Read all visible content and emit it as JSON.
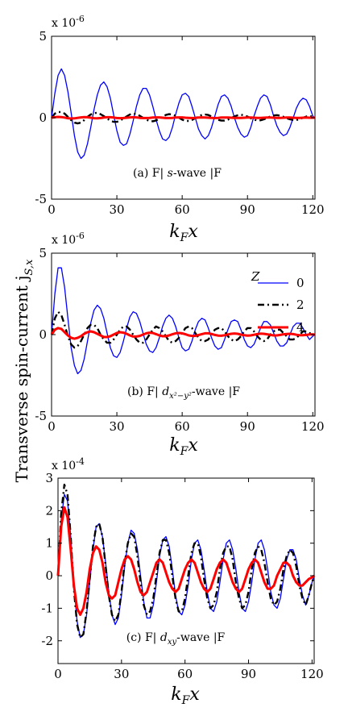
{
  "ylabel": "Transverse spin-current j",
  "ylabel_sub": "S,x",
  "legend_title": "Z",
  "chart_data": [
    {
      "type": "line",
      "caption": "(a) F| s-wave |F",
      "xlabel": "k_F x",
      "exponent_label": "x 10",
      "exponent": "-6",
      "xlim": [
        0,
        121
      ],
      "ylim": [
        -5,
        5
      ],
      "xticks": [
        0,
        30,
        60,
        90,
        120
      ],
      "yticks": [
        -5,
        0,
        5
      ],
      "x": [
        0,
        1.5,
        3,
        4.5,
        6,
        7.5,
        9,
        10.5,
        12,
        13.5,
        15,
        16.5,
        18,
        19.5,
        21,
        22.5,
        24,
        25.5,
        27,
        28.5,
        30,
        31.5,
        33,
        34.5,
        36,
        37.5,
        39,
        40.5,
        42,
        43.5,
        45,
        46.5,
        48,
        49.5,
        51,
        52.5,
        54,
        55.5,
        57,
        58.5,
        60,
        61.5,
        63,
        64.5,
        66,
        67.5,
        69,
        70.5,
        72,
        73.5,
        75,
        76.5,
        78,
        79.5,
        81,
        82.5,
        84,
        85.5,
        87,
        88.5,
        90,
        91.5,
        93,
        94.5,
        96,
        97.5,
        99,
        100.5,
        102,
        103.5,
        105,
        106.5,
        108,
        109.5,
        111,
        112.5,
        114,
        115.5,
        117,
        118.5,
        120,
        121
      ],
      "series": [
        {
          "name": "0",
          "color": "#0000ff",
          "dash": "solid",
          "width": 1.3,
          "values": [
            0,
            1.5,
            2.6,
            3.0,
            2.6,
            1.6,
            0.3,
            -1.1,
            -2.1,
            -2.5,
            -2.3,
            -1.6,
            -0.6,
            0.5,
            1.4,
            2.0,
            2.2,
            1.9,
            1.2,
            0.2,
            -0.8,
            -1.5,
            -1.7,
            -1.6,
            -1.0,
            -0.2,
            0.7,
            1.4,
            1.8,
            1.8,
            1.4,
            0.7,
            -0.1,
            -0.8,
            -1.3,
            -1.4,
            -1.2,
            -0.6,
            0.2,
            0.9,
            1.4,
            1.5,
            1.3,
            0.7,
            0,
            -0.7,
            -1.1,
            -1.3,
            -1.1,
            -0.6,
            0.1,
            0.8,
            1.3,
            1.4,
            1.2,
            0.7,
            0,
            -0.6,
            -1.0,
            -1.2,
            -1.1,
            -0.6,
            0.1,
            0.7,
            1.2,
            1.4,
            1.3,
            0.8,
            0.1,
            -0.5,
            -0.9,
            -1.1,
            -1.0,
            -0.6,
            0,
            0.6,
            1.0,
            1.2,
            1.1,
            0.7,
            0.1,
            0
          ]
        },
        {
          "name": "2",
          "color": "#000000",
          "dash": "8 4 2 4",
          "width": 2.4,
          "values": [
            0,
            0.25,
            0.35,
            0.35,
            0.25,
            0.05,
            -0.15,
            -0.3,
            -0.35,
            -0.3,
            -0.15,
            0.05,
            0.2,
            0.28,
            0.3,
            0.22,
            0.1,
            -0.05,
            -0.18,
            -0.25,
            -0.25,
            -0.18,
            -0.05,
            0.08,
            0.2,
            0.25,
            0.22,
            0.12,
            0,
            -0.12,
            -0.2,
            -0.22,
            -0.17,
            -0.06,
            0.06,
            0.17,
            0.22,
            0.2,
            0.12,
            0,
            -0.12,
            -0.2,
            -0.2,
            -0.14,
            -0.03,
            0.08,
            0.17,
            0.2,
            0.17,
            0.08,
            -0.03,
            -0.13,
            -0.18,
            -0.18,
            -0.12,
            -0.02,
            0.08,
            0.15,
            0.18,
            0.15,
            0.07,
            -0.03,
            -0.12,
            -0.17,
            -0.16,
            -0.1,
            -0.01,
            0.08,
            0.14,
            0.16,
            0.13,
            0.06,
            -0.03,
            -0.1,
            -0.14,
            -0.14,
            -0.09,
            0,
            0.07,
            0.12,
            0.05,
            0
          ]
        },
        {
          "name": "4",
          "color": "#ff0000",
          "dash": "solid",
          "width": 3.0,
          "values": [
            0,
            0.03,
            0.05,
            0.04,
            0.01,
            -0.03,
            -0.05,
            -0.04,
            -0.01,
            0.02,
            0.04,
            0.03,
            0,
            -0.03,
            -0.04,
            -0.02,
            0.01,
            0.03,
            0.03,
            0.01,
            -0.02,
            -0.03,
            -0.02,
            0,
            0.02,
            0.03,
            0.02,
            -0.01,
            -0.02,
            -0.02,
            -0.01,
            0.01,
            0.02,
            0.02,
            0,
            -0.02,
            -0.02,
            -0.01,
            0.01,
            0.02,
            0.02,
            0,
            -0.01,
            -0.02,
            -0.01,
            0.01,
            0.02,
            0.01,
            0,
            -0.01,
            -0.02,
            -0.01,
            0.01,
            0.01,
            0.01,
            0,
            -0.01,
            -0.01,
            -0.01,
            0,
            0.01,
            0.01,
            0,
            -0.01,
            -0.01,
            0,
            0.01,
            0.01,
            0,
            -0.01,
            -0.01,
            0,
            0.01,
            0.01,
            0,
            -0.01,
            -0.01,
            0,
            0.01,
            0,
            0,
            0
          ]
        }
      ]
    },
    {
      "type": "line",
      "caption": "(b) F| d_{x²−y²}-wave |F",
      "xlabel": "k_F x",
      "exponent_label": "x 10",
      "exponent": "-6",
      "xlim": [
        0,
        121
      ],
      "ylim": [
        -5,
        5
      ],
      "xticks": [
        0,
        30,
        60,
        90,
        120
      ],
      "yticks": [
        -5,
        0,
        5
      ],
      "x": [
        0,
        1.5,
        3,
        4.5,
        6,
        7.5,
        9,
        10.5,
        12,
        13.5,
        15,
        16.5,
        18,
        19.5,
        21,
        22.5,
        24,
        25.5,
        27,
        28.5,
        30,
        31.5,
        33,
        34.5,
        36,
        37.5,
        39,
        40.5,
        42,
        43.5,
        45,
        46.5,
        48,
        49.5,
        51,
        52.5,
        54,
        55.5,
        57,
        58.5,
        60,
        61.5,
        63,
        64.5,
        66,
        67.5,
        69,
        70.5,
        72,
        73.5,
        75,
        76.5,
        78,
        79.5,
        81,
        82.5,
        84,
        85.5,
        87,
        88.5,
        90,
        91.5,
        93,
        94.5,
        96,
        97.5,
        99,
        100.5,
        102,
        103.5,
        105,
        106.5,
        108,
        109.5,
        111,
        112.5,
        114,
        115.5,
        117,
        118.5,
        120,
        121
      ],
      "series": [
        {
          "name": "0",
          "color": "#0000ff",
          "dash": "solid",
          "width": 1.3,
          "values": [
            0,
            2.5,
            4.1,
            4.1,
            2.9,
            1.0,
            -0.8,
            -1.9,
            -2.4,
            -2.2,
            -1.5,
            -0.4,
            0.7,
            1.5,
            1.8,
            1.6,
            1.0,
            0.1,
            -0.8,
            -1.3,
            -1.4,
            -1.1,
            -0.4,
            0.4,
            1.1,
            1.4,
            1.3,
            0.8,
            0.1,
            -0.6,
            -1.0,
            -1.1,
            -0.8,
            -0.2,
            0.5,
            1.0,
            1.2,
            1.0,
            0.5,
            -0.2,
            -0.8,
            -1.0,
            -0.9,
            -0.4,
            0.3,
            0.8,
            1.0,
            0.9,
            0.4,
            -0.2,
            -0.7,
            -0.9,
            -0.8,
            -0.3,
            0.3,
            0.8,
            0.9,
            0.8,
            0.3,
            -0.3,
            -0.7,
            -0.8,
            -0.6,
            -0.1,
            0.4,
            0.8,
            0.8,
            0.6,
            0.1,
            -0.4,
            -0.7,
            -0.7,
            -0.5,
            0,
            0.5,
            0.7,
            0.7,
            0.4,
            0,
            -0.3,
            -0.1,
            0
          ]
        },
        {
          "name": "2",
          "color": "#000000",
          "dash": "8 4 2 4",
          "width": 2.4,
          "values": [
            0,
            1.0,
            1.4,
            1.2,
            0.6,
            -0.1,
            -0.6,
            -0.8,
            -0.7,
            -0.4,
            0,
            0.4,
            0.6,
            0.6,
            0.4,
            0,
            -0.3,
            -0.5,
            -0.5,
            -0.3,
            0,
            0.3,
            0.5,
            0.5,
            0.3,
            0,
            -0.3,
            -0.5,
            -0.5,
            -0.3,
            0,
            0.3,
            0.5,
            0.4,
            0.2,
            -0.1,
            -0.4,
            -0.5,
            -0.4,
            -0.2,
            0.1,
            0.4,
            0.5,
            0.4,
            0.1,
            -0.2,
            -0.4,
            -0.4,
            -0.3,
            0,
            0.3,
            0.4,
            0.4,
            0.2,
            -0.1,
            -0.3,
            -0.4,
            -0.3,
            -0.1,
            0.2,
            0.4,
            0.4,
            0.2,
            -0.1,
            -0.3,
            -0.4,
            -0.3,
            0,
            0.2,
            0.3,
            0.3,
            0.1,
            -0.1,
            -0.3,
            -0.3,
            -0.2,
            0,
            0.2,
            0.2,
            0.1,
            0,
            0
          ]
        },
        {
          "name": "4",
          "color": "#ff0000",
          "dash": "solid",
          "width": 3.0,
          "values": [
            0,
            0.3,
            0.4,
            0.35,
            0.15,
            -0.05,
            -0.2,
            -0.25,
            -0.2,
            -0.1,
            0.05,
            0.15,
            0.2,
            0.15,
            0.05,
            -0.05,
            -0.15,
            -0.15,
            -0.1,
            0,
            0.1,
            0.15,
            0.12,
            0.05,
            -0.05,
            -0.12,
            -0.12,
            -0.08,
            0,
            0.08,
            0.12,
            0.1,
            0.03,
            -0.05,
            -0.1,
            -0.1,
            -0.05,
            0.02,
            0.08,
            0.1,
            0.08,
            0.02,
            -0.05,
            -0.08,
            -0.08,
            -0.03,
            0.03,
            0.08,
            0.08,
            0.04,
            -0.02,
            -0.06,
            -0.07,
            -0.04,
            0.01,
            0.05,
            0.07,
            0.05,
            0,
            -0.04,
            -0.06,
            -0.05,
            -0.01,
            0.03,
            0.06,
            0.05,
            0.02,
            -0.02,
            -0.05,
            -0.05,
            -0.02,
            0.02,
            0.04,
            0.05,
            0.03,
            -0.01,
            -0.04,
            -0.04,
            -0.02,
            0.01,
            0.01,
            0
          ]
        }
      ]
    },
    {
      "type": "line",
      "caption": "(c) F| d_{xy}-wave |F",
      "xlabel": "k_F x",
      "exponent_label": "x 10",
      "exponent": "-4",
      "xlim": [
        0,
        121
      ],
      "ylim": [
        -2.7,
        3
      ],
      "xticks": [
        0,
        30,
        60,
        90,
        120
      ],
      "yticks": [
        -2,
        -1,
        0,
        1,
        2,
        3
      ],
      "x": [
        0,
        1.5,
        3,
        4.5,
        6,
        7.5,
        9,
        10.5,
        12,
        13.5,
        15,
        16.5,
        18,
        19.5,
        21,
        22.5,
        24,
        25.5,
        27,
        28.5,
        30,
        31.5,
        33,
        34.5,
        36,
        37.5,
        39,
        40.5,
        42,
        43.5,
        45,
        46.5,
        48,
        49.5,
        51,
        52.5,
        54,
        55.5,
        57,
        58.5,
        60,
        61.5,
        63,
        64.5,
        66,
        67.5,
        69,
        70.5,
        72,
        73.5,
        75,
        76.5,
        78,
        79.5,
        81,
        82.5,
        84,
        85.5,
        87,
        88.5,
        90,
        91.5,
        93,
        94.5,
        96,
        97.5,
        99,
        100.5,
        102,
        103.5,
        105,
        106.5,
        108,
        109.5,
        111,
        112.5,
        114,
        115.5,
        117,
        118.5,
        120,
        121
      ],
      "series": [
        {
          "name": "0",
          "color": "#0000ff",
          "dash": "solid",
          "width": 1.3,
          "values": [
            0,
            1.7,
            2.5,
            2.3,
            1.2,
            -0.3,
            -1.4,
            -1.9,
            -1.8,
            -1.2,
            -0.2,
            0.8,
            1.5,
            1.6,
            1.2,
            0.4,
            -0.5,
            -1.2,
            -1.5,
            -1.3,
            -0.6,
            0.3,
            1.0,
            1.4,
            1.3,
            0.8,
            0,
            -0.8,
            -1.3,
            -1.3,
            -0.9,
            -0.2,
            0.6,
            1.1,
            1.2,
            0.9,
            0.2,
            -0.6,
            -1.1,
            -1.2,
            -0.9,
            -0.3,
            0.5,
            1.0,
            1.1,
            0.8,
            0.2,
            -0.5,
            -1.0,
            -1.1,
            -0.8,
            -0.2,
            0.5,
            1.0,
            1.1,
            0.8,
            0.2,
            -0.5,
            -1.0,
            -1.1,
            -0.8,
            -0.2,
            0.5,
            1.0,
            1.1,
            0.8,
            0.2,
            -0.5,
            -0.9,
            -1.0,
            -0.7,
            -0.1,
            0.5,
            0.8,
            0.8,
            0.5,
            -0.1,
            -0.6,
            -0.9,
            -0.6,
            -0.2,
            0
          ]
        },
        {
          "name": "2",
          "color": "#000000",
          "dash": "8 4 2 4",
          "width": 2.4,
          "values": [
            0,
            1.9,
            2.8,
            2.5,
            1.2,
            -0.4,
            -1.5,
            -1.9,
            -1.8,
            -1.1,
            -0.1,
            0.9,
            1.5,
            1.6,
            1.2,
            0.3,
            -0.6,
            -1.2,
            -1.4,
            -1.2,
            -0.5,
            0.4,
            1.0,
            1.3,
            1.2,
            0.6,
            -0.2,
            -0.9,
            -1.2,
            -1.1,
            -0.7,
            0,
            0.7,
            1.1,
            1.1,
            0.7,
            0,
            -0.7,
            -1.1,
            -1.1,
            -0.7,
            0,
            0.7,
            1.0,
            1.0,
            0.6,
            -0.1,
            -0.7,
            -1.0,
            -0.9,
            -0.5,
            0.2,
            0.7,
            0.9,
            0.9,
            0.5,
            -0.2,
            -0.7,
            -1.0,
            -0.9,
            -0.5,
            0.2,
            0.7,
            0.9,
            0.8,
            0.4,
            -0.2,
            -0.7,
            -0.9,
            -0.8,
            -0.4,
            0.2,
            0.6,
            0.8,
            0.7,
            0.3,
            -0.3,
            -0.7,
            -0.9,
            -0.6,
            -0.2,
            0
          ]
        },
        {
          "name": "4",
          "color": "#ff0000",
          "dash": "solid",
          "width": 3.0,
          "values": [
            0,
            1.5,
            2.1,
            1.8,
            0.8,
            -0.3,
            -1.0,
            -1.2,
            -1.0,
            -0.5,
            0.2,
            0.7,
            0.9,
            0.8,
            0.4,
            -0.2,
            -0.6,
            -0.7,
            -0.6,
            -0.2,
            0.2,
            0.5,
            0.6,
            0.5,
            0.2,
            -0.2,
            -0.5,
            -0.6,
            -0.5,
            -0.2,
            0.1,
            0.4,
            0.5,
            0.4,
            0.1,
            -0.2,
            -0.4,
            -0.5,
            -0.4,
            -0.1,
            0.2,
            0.4,
            0.5,
            0.4,
            0.1,
            -0.2,
            -0.4,
            -0.5,
            -0.4,
            -0.1,
            0.2,
            0.4,
            0.5,
            0.4,
            0.1,
            -0.2,
            -0.4,
            -0.5,
            -0.4,
            -0.1,
            0.2,
            0.4,
            0.5,
            0.4,
            0.1,
            -0.2,
            -0.4,
            -0.4,
            -0.3,
            0,
            0.2,
            0.4,
            0.4,
            0.3,
            0,
            -0.2,
            -0.3,
            -0.3,
            -0.2,
            -0.1,
            -0.05,
            0
          ]
        }
      ]
    }
  ]
}
